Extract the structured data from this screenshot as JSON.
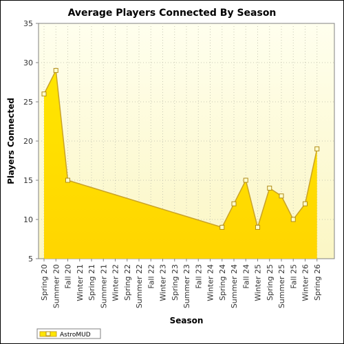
{
  "chart_data": {
    "type": "area",
    "title": "Average Players Connected By Season",
    "xlabel": "Season",
    "ylabel": "Players Connected",
    "ylim": [
      5,
      35
    ],
    "yticks": [
      5,
      10,
      15,
      20,
      25,
      30,
      35
    ],
    "grid": true,
    "legend_position": "bottom-left",
    "categories": [
      "Spring 20",
      "Summer 20",
      "Fall 20",
      "Winter 21",
      "Spring 21",
      "Summer 21",
      "Winter 22",
      "Spring 22",
      "Summer 22",
      "Fall 22",
      "Winter 23",
      "Spring 23",
      "Summer 23",
      "Fall 23",
      "Winter 24",
      "Spring 24",
      "Summer 24",
      "Fall 24",
      "Winter 25",
      "Spring 25",
      "Summer 25",
      "Fall 25",
      "Winter 26",
      "Spring 26"
    ],
    "series": [
      {
        "name": "AstroMUD",
        "points": [
          {
            "x": "Spring 20",
            "y": 26
          },
          {
            "x": "Summer 20",
            "y": 29
          },
          {
            "x": "Fall 20",
            "y": 15
          },
          {
            "x": "Spring 24",
            "y": 9
          },
          {
            "x": "Summer 24",
            "y": 12
          },
          {
            "x": "Fall 24",
            "y": 15
          },
          {
            "x": "Winter 25",
            "y": 9
          },
          {
            "x": "Spring 25",
            "y": 14
          },
          {
            "x": "Summer 25",
            "y": 13
          },
          {
            "x": "Fall 25",
            "y": 10
          },
          {
            "x": "Winter 26",
            "y": 12
          },
          {
            "x": "Spring 26",
            "y": 19
          }
        ]
      }
    ],
    "colors": {
      "fill_top": "#ffe600",
      "fill_bottom": "#ffd500",
      "line": "#c9a227",
      "marker_fill": "#ffffcc",
      "marker_stroke": "#b08a1a",
      "plot_bg_top": "#ffffee",
      "plot_bg_bottom": "#fbf6c4",
      "grid": "#c8c8b4"
    }
  }
}
